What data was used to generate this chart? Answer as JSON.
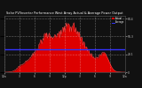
{
  "title": "Solar PV/Inverter Performance West Array Actual & Average Power Output",
  "bg_color": "#111111",
  "plot_bg_color": "#111111",
  "bar_color": "#dd0000",
  "avg_line_color": "#3333ff",
  "avg_value": 0.42,
  "y_max": 84.4,
  "y_ticks": [
    0,
    28.1,
    56.3,
    84.4
  ],
  "grid_color": "#ffffff",
  "title_color": "#ffffff",
  "label_color": "#cccccc",
  "legend_actual_color": "#dd0000",
  "legend_avg_color": "#3333ff",
  "n_points": 200
}
